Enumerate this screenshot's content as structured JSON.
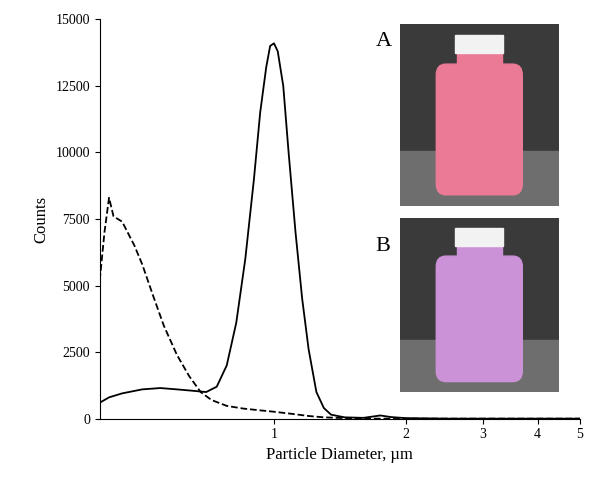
{
  "chart_data": {
    "type": "line",
    "x_label": "Particle Diameter, µm",
    "y_label": "Counts",
    "log": "x",
    "xlim": [
      0.4,
      5
    ],
    "xticks": [
      1,
      2,
      3,
      4,
      5
    ],
    "ylim": [
      0,
      15000
    ],
    "yticks": [
      0,
      2500,
      5000,
      7500,
      10000,
      12500,
      15000
    ],
    "annotations": [
      {
        "text": "A",
        "color": "#ea7a95"
      },
      {
        "text": "B",
        "color": "#cc92d8"
      }
    ],
    "series": [
      {
        "color": "#000000",
        "line_style": "solid",
        "x": [
          0.4,
          0.42,
          0.45,
          0.5,
          0.55,
          0.6,
          0.65,
          0.7,
          0.74,
          0.78,
          0.82,
          0.86,
          0.9,
          0.93,
          0.96,
          0.98,
          1.0,
          1.02,
          1.05,
          1.08,
          1.12,
          1.16,
          1.2,
          1.25,
          1.3,
          1.35,
          1.45,
          1.6,
          1.75,
          1.85,
          2.0,
          2.5,
          3.0,
          5.0
        ],
        "values": [
          600,
          800,
          950,
          1100,
          1150,
          1100,
          1050,
          1000,
          1200,
          2000,
          3600,
          6000,
          9000,
          11500,
          13200,
          14000,
          14100,
          13800,
          12500,
          10000,
          7000,
          4500,
          2600,
          1000,
          400,
          150,
          50,
          30,
          120,
          60,
          20,
          0,
          0,
          0
        ]
      },
      {
        "color": "#000000",
        "line_style": "dashed",
        "x": [
          0.4,
          0.41,
          0.42,
          0.43,
          0.45,
          0.48,
          0.5,
          0.53,
          0.56,
          0.6,
          0.64,
          0.68,
          0.72,
          0.78,
          0.85,
          0.92,
          1.0,
          1.1,
          1.2,
          1.3,
          1.45,
          1.6,
          2.0,
          5.0
        ],
        "values": [
          5200,
          7000,
          8300,
          7600,
          7400,
          6500,
          5800,
          4600,
          3500,
          2400,
          1600,
          1000,
          700,
          480,
          380,
          320,
          260,
          180,
          100,
          50,
          20,
          0,
          0,
          0
        ]
      }
    ]
  }
}
